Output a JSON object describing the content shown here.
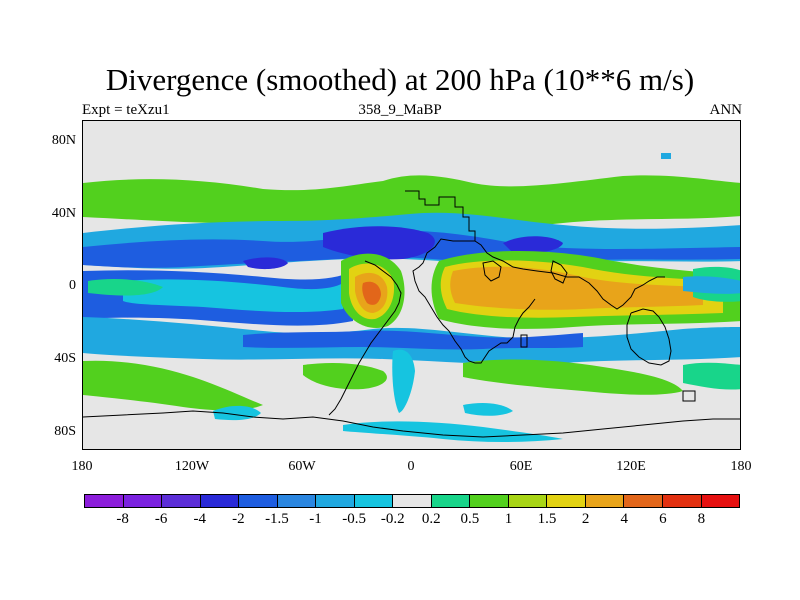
{
  "title": "Divergence (smoothed) at 200 hPa (10**6 m/s)",
  "subtitle": {
    "left": "Expt = teXzu1",
    "center": "358_9_MaBP",
    "right": "ANN"
  },
  "map": {
    "y_axis_labels": [
      "80N",
      "40N",
      "0",
      "40S",
      "80S"
    ],
    "x_axis_labels": [
      "180",
      "120W",
      "60W",
      "0",
      "60E",
      "120E",
      "180"
    ],
    "field_name": "divergence",
    "units": "10**6 m/s",
    "level": "200 hPa"
  },
  "legend": {
    "labels": [
      "-8",
      "-6",
      "-4",
      "-2",
      "-1.5",
      "-1",
      "-0.5",
      "-0.2",
      "0.2",
      "0.5",
      "1",
      "1.5",
      "2",
      "4",
      "6",
      "8"
    ],
    "colors": [
      "#8c1ddb",
      "#7b22e0",
      "#5c2ed8",
      "#2a2ad8",
      "#1e5de0",
      "#2a86e0",
      "#20a8e0",
      "#16c4e0",
      "#e6e6e6",
      "#18d58a",
      "#52d01e",
      "#a8d516",
      "#e2d212",
      "#e8a41a",
      "#e2661a",
      "#e23010",
      "#e61010"
    ]
  },
  "palette": {
    "background": "#ffffff",
    "ocean_neutral": "#e6e6e6",
    "coastline": "#000000"
  }
}
